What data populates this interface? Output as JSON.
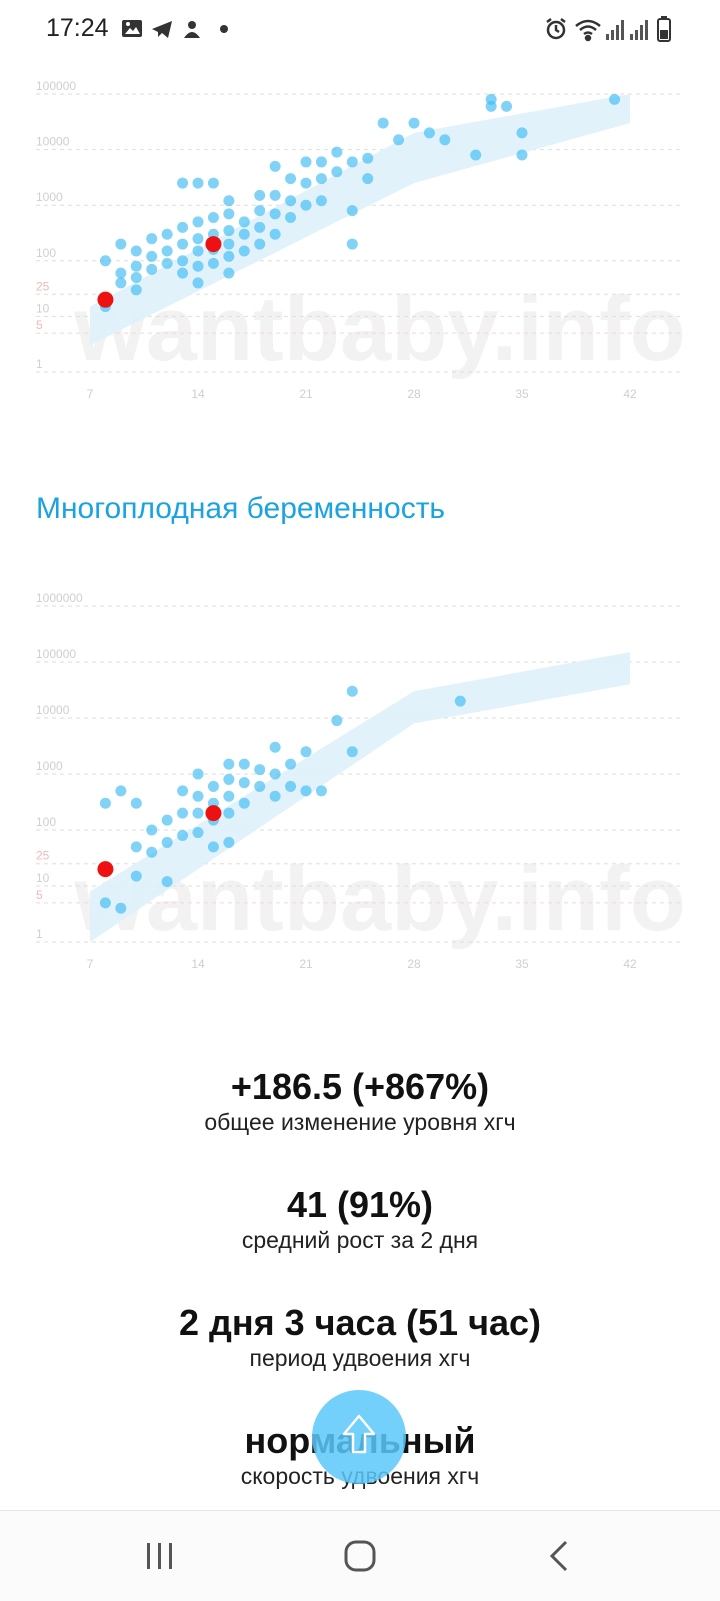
{
  "status_bar": {
    "time": "17:24",
    "left_icons": [
      "image-icon",
      "telegram-icon",
      "app-notification-icon",
      "dot-icon"
    ],
    "right_icons": [
      "alarm-icon",
      "wifi-icon",
      "signal-icon",
      "signal-icon",
      "battery-icon"
    ]
  },
  "watermark": "wantbaby.info",
  "section_title": "Многоплодная беременность",
  "charts": [
    {
      "y_ticks": [
        "100000",
        "10000",
        "1000",
        "100",
        "25",
        "10",
        "5",
        "1"
      ],
      "x_ticks": [
        "7",
        "14",
        "21",
        "28",
        "35",
        "42"
      ]
    },
    {
      "y_ticks": [
        "1000000",
        "100000",
        "10000",
        "1000",
        "100",
        "25",
        "10",
        "5",
        "1"
      ],
      "x_ticks": [
        "7",
        "14",
        "21",
        "28",
        "35",
        "42"
      ]
    }
  ],
  "chart_data": [
    {
      "type": "scatter",
      "title": "",
      "xlabel": "",
      "ylabel": "",
      "y_scale": "log",
      "xlim": [
        7,
        42
      ],
      "ylim": [
        1,
        100000
      ],
      "band": {
        "x": [
          7,
          28,
          42
        ],
        "low": [
          3,
          2500,
          30000
        ],
        "high": [
          15,
          20000,
          100000
        ]
      },
      "points": [
        [
          8,
          100
        ],
        [
          8,
          20
        ],
        [
          8,
          15
        ],
        [
          9,
          200
        ],
        [
          9,
          60
        ],
        [
          9,
          40
        ],
        [
          10,
          150
        ],
        [
          10,
          80
        ],
        [
          10,
          50
        ],
        [
          10,
          30
        ],
        [
          11,
          250
        ],
        [
          11,
          120
        ],
        [
          11,
          70
        ],
        [
          12,
          300
        ],
        [
          12,
          150
        ],
        [
          12,
          90
        ],
        [
          13,
          2500
        ],
        [
          13,
          400
        ],
        [
          13,
          200
        ],
        [
          13,
          100
        ],
        [
          13,
          60
        ],
        [
          14,
          2500
        ],
        [
          14,
          500
        ],
        [
          14,
          250
        ],
        [
          14,
          150
        ],
        [
          14,
          80
        ],
        [
          14,
          40
        ],
        [
          15,
          2500
        ],
        [
          15,
          600
        ],
        [
          15,
          300
        ],
        [
          15,
          160
        ],
        [
          15,
          90
        ],
        [
          16,
          1200
        ],
        [
          16,
          700
        ],
        [
          16,
          350
        ],
        [
          16,
          200
        ],
        [
          16,
          120
        ],
        [
          16,
          60
        ],
        [
          17,
          500
        ],
        [
          17,
          300
        ],
        [
          17,
          150
        ],
        [
          18,
          1500
        ],
        [
          18,
          800
        ],
        [
          18,
          400
        ],
        [
          18,
          200
        ],
        [
          19,
          5000
        ],
        [
          19,
          1500
        ],
        [
          19,
          700
        ],
        [
          19,
          300
        ],
        [
          20,
          3000
        ],
        [
          20,
          1200
        ],
        [
          20,
          600
        ],
        [
          21,
          6000
        ],
        [
          21,
          2500
        ],
        [
          21,
          1000
        ],
        [
          22,
          6000
        ],
        [
          22,
          3000
        ],
        [
          22,
          1200
        ],
        [
          23,
          9000
        ],
        [
          23,
          4000
        ],
        [
          24,
          6000
        ],
        [
          24,
          800
        ],
        [
          24,
          200
        ],
        [
          25,
          7000
        ],
        [
          25,
          3000
        ],
        [
          26,
          30000
        ],
        [
          27,
          15000
        ],
        [
          28,
          30000
        ],
        [
          29,
          20000
        ],
        [
          30,
          15000
        ],
        [
          32,
          8000
        ],
        [
          33,
          80000
        ],
        [
          33,
          60000
        ],
        [
          34,
          60000
        ],
        [
          35,
          20000
        ],
        [
          35,
          8000
        ],
        [
          41,
          80000
        ]
      ],
      "highlight": [
        [
          8,
          20
        ],
        [
          15,
          200
        ]
      ]
    },
    {
      "type": "scatter",
      "title": "",
      "xlabel": "",
      "ylabel": "",
      "y_scale": "log",
      "xlim": [
        7,
        42
      ],
      "ylim": [
        1,
        1000000
      ],
      "band": {
        "x": [
          7,
          28,
          42
        ],
        "low": [
          1,
          8000,
          40000
        ],
        "high": [
          8,
          30000,
          150000
        ]
      },
      "points": [
        [
          8,
          300
        ],
        [
          8,
          5
        ],
        [
          9,
          500
        ],
        [
          9,
          4
        ],
        [
          10,
          300
        ],
        [
          10,
          50
        ],
        [
          10,
          15
        ],
        [
          11,
          100
        ],
        [
          11,
          40
        ],
        [
          12,
          150
        ],
        [
          12,
          60
        ],
        [
          12,
          12
        ],
        [
          13,
          500
        ],
        [
          13,
          200
        ],
        [
          13,
          80
        ],
        [
          14,
          1000
        ],
        [
          14,
          400
        ],
        [
          14,
          200
        ],
        [
          14,
          90
        ],
        [
          15,
          600
        ],
        [
          15,
          300
        ],
        [
          15,
          150
        ],
        [
          15,
          50
        ],
        [
          16,
          1500
        ],
        [
          16,
          800
        ],
        [
          16,
          400
        ],
        [
          16,
          200
        ],
        [
          16,
          60
        ],
        [
          17,
          1500
        ],
        [
          17,
          700
        ],
        [
          17,
          300
        ],
        [
          18,
          1200
        ],
        [
          18,
          600
        ],
        [
          19,
          3000
        ],
        [
          19,
          1000
        ],
        [
          19,
          400
        ],
        [
          20,
          1500
        ],
        [
          20,
          600
        ],
        [
          21,
          2500
        ],
        [
          21,
          500
        ],
        [
          22,
          500
        ],
        [
          23,
          9000
        ],
        [
          24,
          2500
        ],
        [
          24,
          30000
        ],
        [
          31,
          20000
        ]
      ],
      "highlight": [
        [
          8,
          20
        ],
        [
          15,
          200
        ]
      ]
    }
  ],
  "stats": [
    {
      "value": "+186.5 (+867%)",
      "label": "общее изменение уровня хгч"
    },
    {
      "value": "41 (91%)",
      "label": "средний рост за 2 дня"
    },
    {
      "value": "2 дня 3 часа (51 час)",
      "label": "период удвоения хгч"
    },
    {
      "value": "нормальный",
      "label": "скорость удвоения хгч"
    }
  ],
  "fab_icon": "arrow-up-icon",
  "nav": [
    "recent-apps-icon",
    "home-icon",
    "back-icon"
  ],
  "colors": {
    "accent": "#1aa3e0",
    "point": "#3cbcf2",
    "highlight": "#ee1111",
    "band": "#dff1fb"
  }
}
